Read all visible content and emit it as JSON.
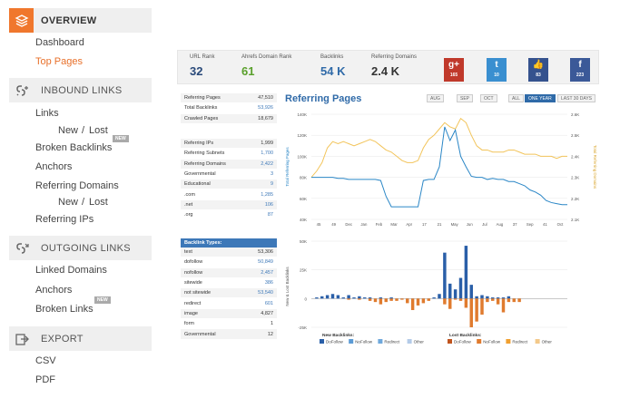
{
  "sidebar": {
    "overview": "OVERVIEW",
    "dashboard": "Dashboard",
    "top_pages": "Top Pages",
    "inbound": "INBOUND LINKS",
    "links": "Links",
    "new": "New",
    "slash": "/",
    "lost": "Lost",
    "broken_backlinks": "Broken Backlinks",
    "new_badge": "NEW",
    "anchors": "Anchors",
    "referring_domains": "Referring Domains",
    "referring_ips": "Referring IPs",
    "outgoing": "OUTGOING LINKS",
    "linked_domains": "Linked Domains",
    "anchors2": "Anchors",
    "broken_links": "Broken Links",
    "export": "EXPORT",
    "csv": "CSV",
    "pdf": "PDF"
  },
  "stats": {
    "url_rank_label": "URL Rank",
    "url_rank": "32",
    "ahrefs_label": "Ahrefs Domain Rank",
    "ahrefs": "61",
    "backlinks_label": "Backlinks",
    "backlinks": "54 K",
    "refdomains_label": "Referring Domains",
    "refdomains": "2.4 K"
  },
  "social": [
    {
      "icon": "g+",
      "count": "165",
      "color": "#c0392b"
    },
    {
      "icon": "t",
      "count": "10",
      "color": "#3a8fd0"
    },
    {
      "icon": "👍",
      "count": "83",
      "color": "#35528e"
    },
    {
      "icon": "f",
      "count": "223",
      "color": "#3b5998"
    }
  ],
  "table1": [
    {
      "label": "Referring Pages",
      "value": "47,510",
      "link": false
    },
    {
      "label": "Total Backlinks",
      "value": "53,926",
      "link": true
    },
    {
      "label": "Crawled Pages",
      "value": "18,679",
      "link": false
    }
  ],
  "table2": [
    {
      "label": "Referring IPs",
      "value": "1,999",
      "link": false
    },
    {
      "label": "Referring Subnets",
      "value": "1,700",
      "link": true
    },
    {
      "label": "Referring Domains",
      "value": "2,422",
      "link": true
    },
    {
      "label": "Governmental",
      "value": "3",
      "link": true
    },
    {
      "label": "Educational",
      "value": "9",
      "link": true
    },
    {
      "label": ".com",
      "value": "1,285",
      "link": true
    },
    {
      "label": ".net",
      "value": "106",
      "link": true
    },
    {
      "label": ".org",
      "value": "87",
      "link": true
    }
  ],
  "table3_title": "Backlink Types:",
  "table3": [
    {
      "label": "text",
      "value": "53,306",
      "link": false
    },
    {
      "label": "dofollow",
      "value": "50,849",
      "link": true
    },
    {
      "label": "nofollow",
      "value": "2,457",
      "link": true
    },
    {
      "label": "sitewide",
      "value": "386",
      "link": true
    },
    {
      "label": "not sitewide",
      "value": "53,540",
      "link": true
    },
    {
      "label": "redirect",
      "value": "601",
      "link": true
    },
    {
      "label": "image",
      "value": "4,827",
      "link": false
    },
    {
      "label": "form",
      "value": "1",
      "link": false
    },
    {
      "label": "Governmental",
      "value": "12",
      "link": false
    }
  ],
  "chart_header": {
    "title": "Referring Pages",
    "aug": "AUG",
    "sep": "SEP",
    "oct": "OCT",
    "all": "ALL",
    "one_year": "ONE YEAR",
    "last30": "LAST 30 DAYS"
  },
  "chart_data": [
    {
      "type": "line",
      "ylabel": "Total Referring Pages",
      "y2label": "Total Referring Domains",
      "ylim": [
        40000,
        140000
      ],
      "y2lim": [
        2100,
        2600
      ],
      "yticks": [
        "140K",
        "120K",
        "100K",
        "80K",
        "60K",
        "40K"
      ],
      "y2ticks": [
        "2.6K",
        "2.5K",
        "2.4K",
        "2.3K",
        "2.2K",
        "2.1K"
      ],
      "xticks": [
        "45",
        "49",
        "Dec",
        "Jan",
        "Feb",
        "Mar",
        "Apr",
        "17",
        "21",
        "May",
        "Jun",
        "Jul",
        "Aug",
        "37",
        "Sep",
        "41",
        "Oct"
      ],
      "series": [
        {
          "color": "#2a86c6",
          "values": [
            80,
            80,
            80,
            80,
            80,
            79,
            79,
            78,
            78,
            78,
            78,
            78,
            78,
            77,
            62,
            52,
            52,
            52,
            52,
            52,
            52,
            77,
            78,
            78,
            90,
            128,
            115,
            125,
            100,
            90,
            81,
            80,
            80,
            78,
            79,
            78,
            78,
            76,
            76,
            74,
            72,
            68,
            66,
            63,
            58,
            56,
            55,
            54,
            54
          ]
        },
        {
          "color": "#f2c45a",
          "values": [
            2.3,
            2.33,
            2.37,
            2.44,
            2.47,
            2.46,
            2.47,
            2.46,
            2.45,
            2.46,
            2.47,
            2.48,
            2.47,
            2.45,
            2.43,
            2.42,
            2.4,
            2.38,
            2.37,
            2.37,
            2.38,
            2.44,
            2.48,
            2.5,
            2.53,
            2.56,
            2.54,
            2.53,
            2.58,
            2.56,
            2.5,
            2.45,
            2.43,
            2.43,
            2.42,
            2.42,
            2.42,
            2.43,
            2.43,
            2.42,
            2.41,
            2.41,
            2.41,
            2.4,
            2.4,
            2.4,
            2.39,
            2.4,
            2.4
          ]
        }
      ]
    },
    {
      "type": "bar",
      "ylabel": "New & Lost Backlinks",
      "yticks": [
        "50K",
        "25K",
        "0",
        "-25K"
      ],
      "new_label": "New Backlinks:",
      "lost_label": "Lost Backlinks:",
      "new_series": [
        {
          "name": "DoFollow",
          "color": "#2a5fa8"
        },
        {
          "name": "NoFollow",
          "color": "#5b9bd5"
        },
        {
          "name": "Redirect",
          "color": "#6fa8dc"
        },
        {
          "name": "Other",
          "color": "#b4cbe8"
        }
      ],
      "lost_series": [
        {
          "name": "DoFollow",
          "color": "#c0541e"
        },
        {
          "name": "NoFollow",
          "color": "#e07b2e"
        },
        {
          "name": "Redirect",
          "color": "#f0a030"
        },
        {
          "name": "Other",
          "color": "#f3c98a"
        }
      ],
      "new_values": [
        0,
        1,
        2,
        3,
        4,
        3,
        1,
        3,
        1,
        2,
        1,
        1,
        0,
        1,
        0,
        1,
        0,
        0,
        0,
        0,
        0,
        0,
        0,
        1,
        4,
        40,
        13,
        8,
        18,
        46,
        12,
        2,
        3,
        2,
        1,
        1,
        1,
        2,
        0,
        0,
        0,
        0,
        0,
        0,
        0,
        0,
        0,
        0,
        0
      ],
      "lost_values": [
        0,
        0,
        0,
        0,
        0,
        0,
        0,
        -1,
        0,
        -1,
        0,
        -2,
        -3,
        -5,
        -3,
        -2,
        -2,
        -1,
        -4,
        -10,
        -6,
        -4,
        -2,
        0,
        0,
        -5,
        -9,
        -1,
        -2,
        -8,
        -25,
        -20,
        -14,
        -3,
        -2,
        -5,
        -12,
        -3,
        -3,
        -3,
        0,
        0,
        0,
        0,
        0,
        0,
        0,
        0,
        0
      ]
    }
  ]
}
